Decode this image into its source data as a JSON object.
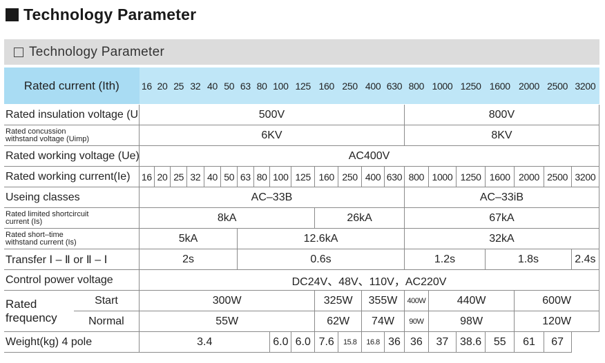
{
  "page": {
    "title": "Technology Parameter",
    "section_title": "Technology Parameter"
  },
  "table": {
    "header_label": "Rated current (Ith)",
    "currents": [
      "16",
      "20",
      "25",
      "32",
      "40",
      "50",
      "63",
      "80",
      "100",
      "125",
      "160",
      "250",
      "400",
      "630",
      "800",
      "1000",
      "1250",
      "1600",
      "2000",
      "2500",
      "3200"
    ],
    "insulation": {
      "label": "Rated insulation voltage (Ui)",
      "low": "500V",
      "high": "800V"
    },
    "concussion": {
      "label_line1": "Rated concussion",
      "label_line2": "withstand voltage (Uimp)",
      "low": "6KV",
      "high": "8KV"
    },
    "working_voltage": {
      "label": "Rated working voltage (Ue)",
      "value": "AC400V"
    },
    "working_current": {
      "label": "Rated working current(Ie)"
    },
    "classes": {
      "label": "Useing classes",
      "low": "AC–33B",
      "high": "AC–33iB"
    },
    "limited": {
      "label_line1": "Rated limited shortcircuit",
      "label_line2": "current (Is)",
      "a": "8kA",
      "b": "26kA",
      "c": "67kA"
    },
    "short_time": {
      "label_line1": "Rated short–time",
      "label_line2": "withstand current (Is)",
      "a": "5kA",
      "b": "12.6kA",
      "c": "32kA"
    },
    "transfer": {
      "label": "Transfer Ⅰ – Ⅱ or Ⅱ – Ⅰ",
      "values": [
        "2s",
        "0.6s",
        "1.2s",
        "1.8s",
        "2.4s"
      ]
    },
    "control": {
      "label": "Control power voltage",
      "value": "DC24V、48V、110V，AC220V"
    },
    "frequency": {
      "rated_line1": "Rated",
      "rated_line2": "frequency",
      "start_label": "Start",
      "normal_label": "Normal",
      "start_values": [
        "300W",
        "325W",
        "355W",
        "400W",
        "440W",
        "600W"
      ],
      "normal_values": [
        "55W",
        "62W",
        "74W",
        "90W",
        "98W",
        "120W"
      ]
    },
    "weight": {
      "label": "Weight(kg) 4 pole",
      "values": [
        "3.4",
        "6.0",
        "6.0",
        "7.6",
        "15.8",
        "16.8",
        "36",
        "36",
        "37",
        "38.6",
        "55",
        "61",
        "67"
      ]
    }
  }
}
